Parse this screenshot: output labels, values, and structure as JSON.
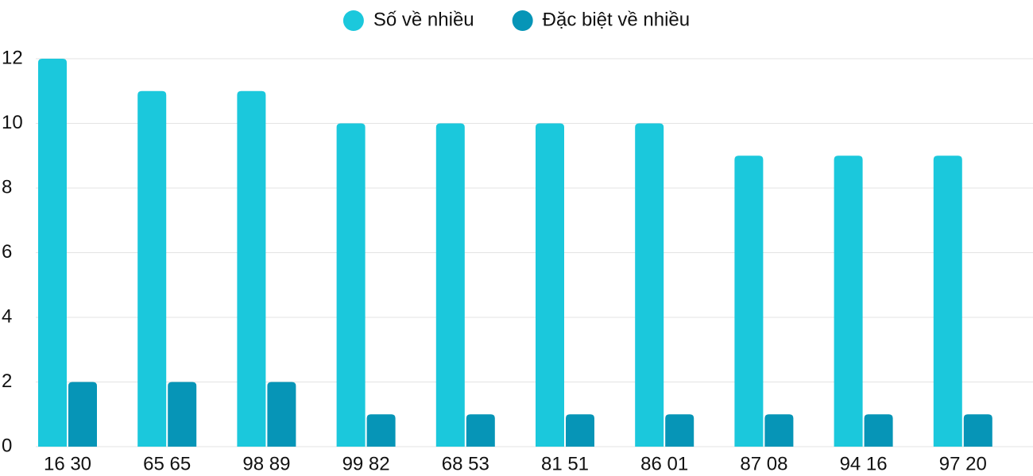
{
  "chart_data": {
    "type": "bar",
    "categories": [
      "16 30",
      "65 65",
      "98 89",
      "99 82",
      "68 53",
      "81 51",
      "86 01",
      "87 08",
      "94 16",
      "97 20"
    ],
    "series": [
      {
        "name": "Số về nhiều",
        "color": "#1bc8dc",
        "values": [
          12,
          11,
          11,
          10,
          10,
          10,
          10,
          9,
          9,
          9
        ]
      },
      {
        "name": "Đặc biệt về nhiều",
        "color": "#0695b7",
        "values": [
          2,
          2,
          2,
          1,
          1,
          1,
          1,
          1,
          1,
          1
        ]
      }
    ],
    "ylim": [
      0,
      12
    ],
    "yticks": [
      0,
      2,
      4,
      6,
      8,
      10,
      12
    ],
    "grid": true,
    "legend": "top"
  }
}
